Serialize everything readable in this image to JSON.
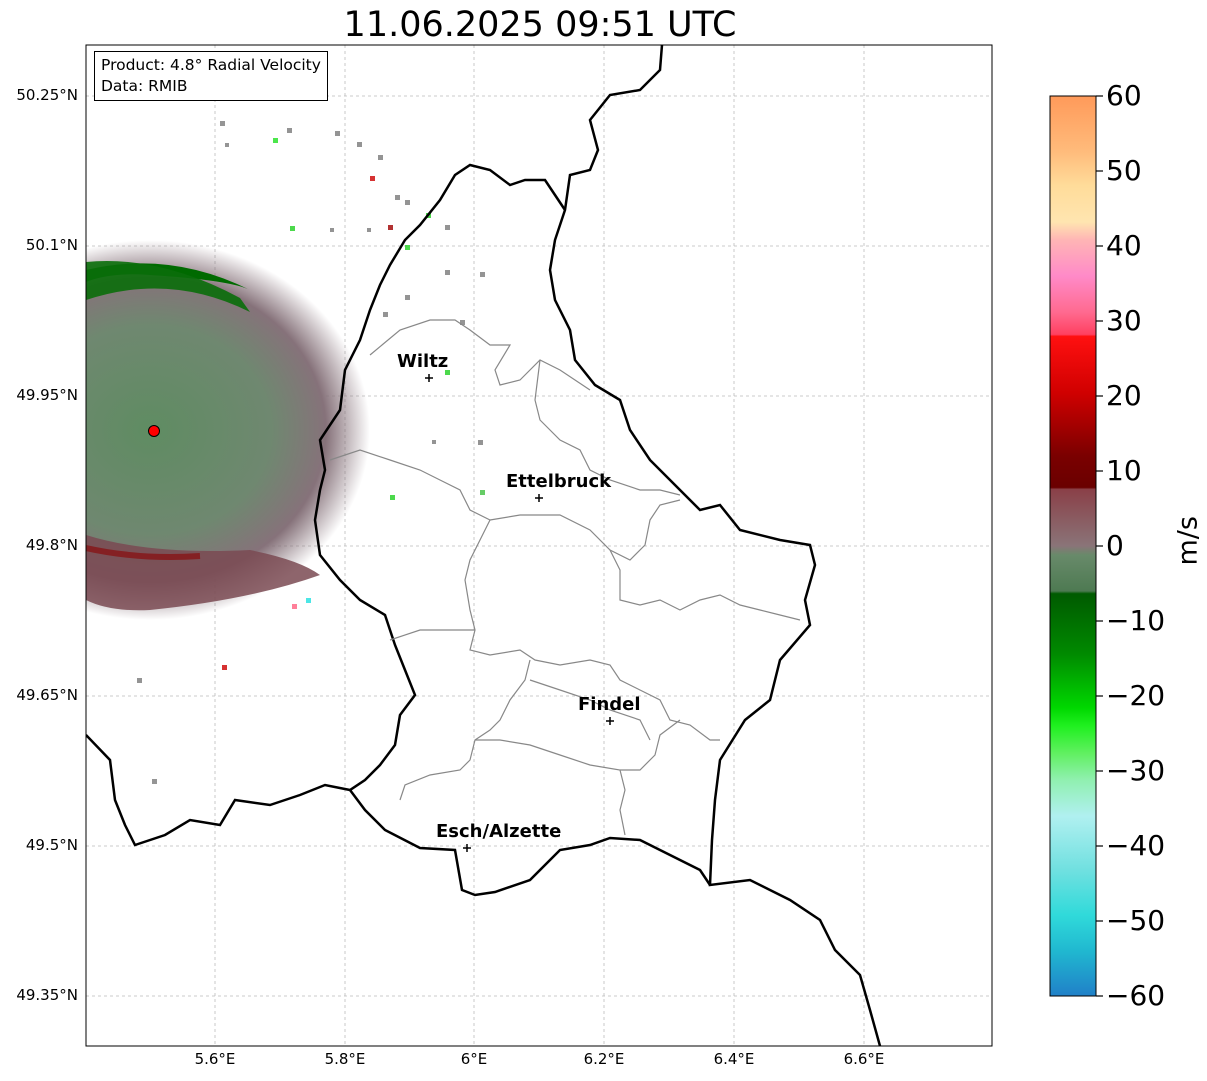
{
  "title": "11.06.2025 09:51 UTC",
  "info": {
    "line1": "Product: 4.8° Radial Velocity",
    "line2": "Data: RMIB"
  },
  "axes": {
    "y_ticks": [
      "50.25°N",
      "50.1°N",
      "49.95°N",
      "49.8°N",
      "49.65°N",
      "49.5°N",
      "49.35°N"
    ],
    "x_ticks": [
      "5.6°E",
      "5.8°E",
      "6°E",
      "6.2°E",
      "6.4°E",
      "6.6°E"
    ]
  },
  "cities": [
    {
      "name": "Wiltz",
      "key": "wiltz"
    },
    {
      "name": "Ettelbruck",
      "key": "ettelbruck"
    },
    {
      "name": "Findel",
      "key": "findel"
    },
    {
      "name": "Esch/Alzette",
      "key": "esch"
    }
  ],
  "colorbar": {
    "label": "m/s",
    "ticks": [
      "60",
      "50",
      "40",
      "30",
      "20",
      "10",
      "0",
      "−10",
      "−20",
      "−30",
      "−40",
      "−50",
      "−60"
    ],
    "range": [
      -60,
      60
    ]
  },
  "colors": {
    "radar_site": "#ff0000",
    "velocity_dark_green": "#006400",
    "velocity_gray_green": "#5f8060",
    "velocity_gray_red": "#8a6a70"
  }
}
